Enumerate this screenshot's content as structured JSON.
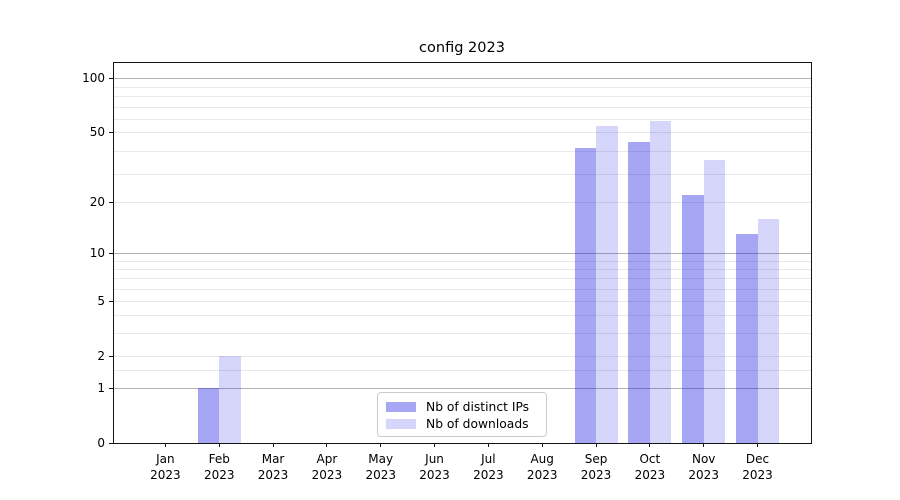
{
  "title": "config 2023",
  "chart_data": {
    "type": "bar",
    "title": "config 2023",
    "xlabel": "",
    "ylabel": "",
    "categories": [
      "Jan",
      "Feb",
      "Mar",
      "Apr",
      "May",
      "Jun",
      "Jul",
      "Aug",
      "Sep",
      "Oct",
      "Nov",
      "Dec"
    ],
    "category_year": "2023",
    "series": [
      {
        "name": "Nb of distinct IPs",
        "color": "rgba(8,8,228,0.36)",
        "values": [
          null,
          1,
          null,
          null,
          null,
          null,
          null,
          null,
          41,
          44,
          22,
          13
        ]
      },
      {
        "name": "Nb of downloads",
        "color": "rgba(8,8,228,0.165)",
        "values": [
          null,
          2,
          null,
          null,
          null,
          null,
          null,
          null,
          54,
          58,
          35,
          16
        ]
      }
    ],
    "yscale": "log10(1+y)",
    "ylim": [
      0,
      125
    ],
    "yticks": [
      0,
      1,
      2,
      5,
      10,
      20,
      50,
      100
    ],
    "major_grid_values": [
      1,
      10,
      100
    ],
    "minor_grid_values": [
      1.5,
      2,
      3,
      4,
      5,
      6,
      7,
      8,
      9,
      20,
      29,
      39,
      50,
      59,
      69,
      79,
      89
    ],
    "grid": true,
    "legend_position": "lower center"
  },
  "colors": {
    "bar_dark": "#a6a6f5",
    "bar_light": "#d6d6fb",
    "grid_major": "#b3b3b3",
    "grid_minor": "#e9e9e9",
    "spine": "#141414",
    "background": "#ffffff"
  }
}
